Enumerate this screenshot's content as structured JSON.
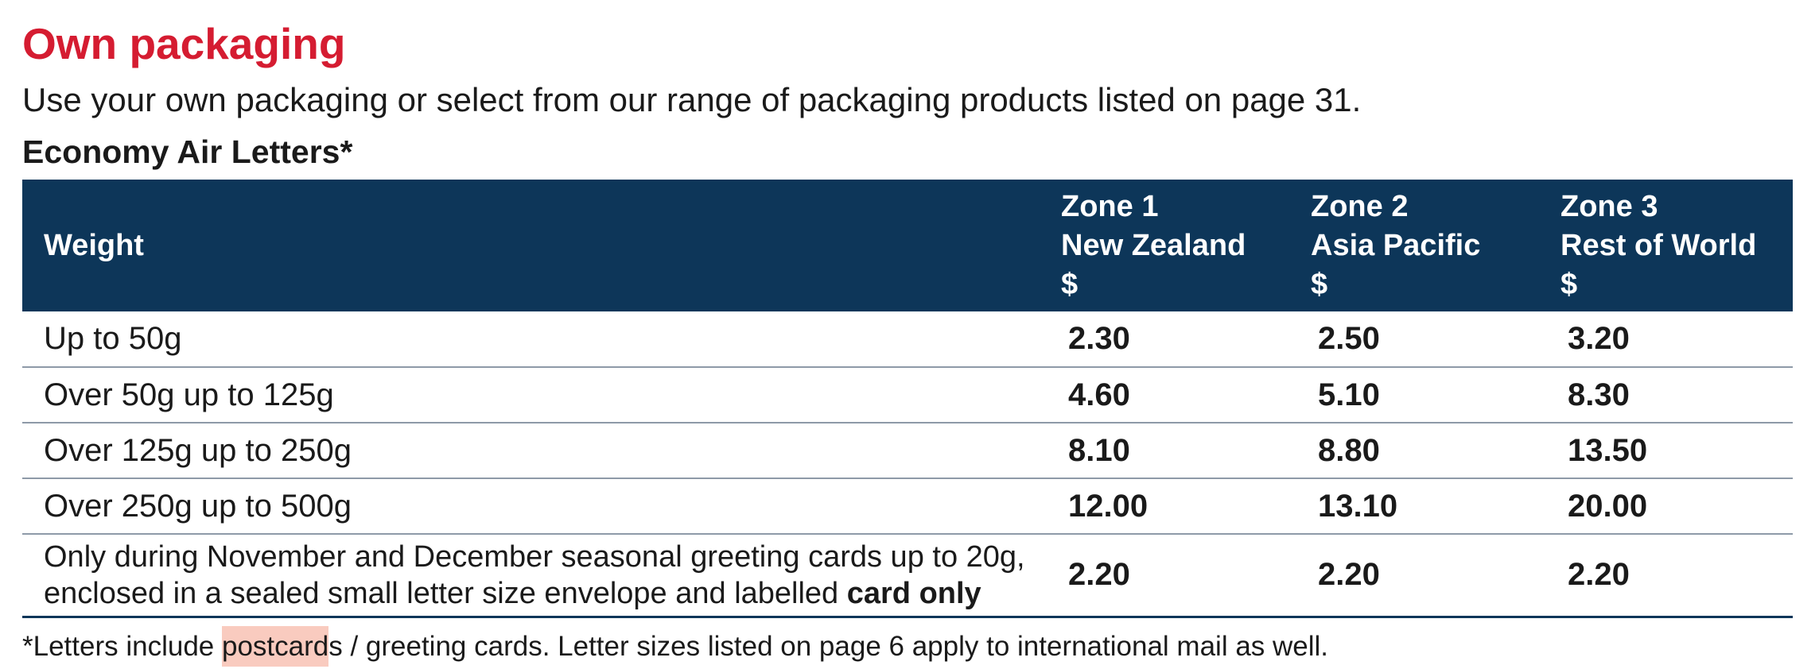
{
  "heading": "Own packaging",
  "intro": "Use your own packaging or select from our range of packaging products listed on page 31.",
  "table_title": "Economy Air Letters*",
  "columns": {
    "weight": "Weight",
    "zone1": {
      "line1": "Zone 1",
      "line2": "New Zealand",
      "line3": "$"
    },
    "zone2": {
      "line1": "Zone 2",
      "line2": "Asia Pacific",
      "line3": "$"
    },
    "zone3": {
      "line1": "Zone 3",
      "line2": "Rest of World",
      "line3": "$"
    }
  },
  "rows": [
    {
      "weight": "Up to 50g",
      "z1": "2.30",
      "z2": "2.50",
      "z3": "3.20"
    },
    {
      "weight": "Over 50g up to 125g",
      "z1": "4.60",
      "z2": "5.10",
      "z3": "8.30"
    },
    {
      "weight": "Over 125g up to 250g",
      "z1": "8.10",
      "z2": "8.80",
      "z3": "13.50"
    },
    {
      "weight": "Over 250g up to 500g",
      "z1": "12.00",
      "z2": "13.10",
      "z3": "20.00"
    }
  ],
  "seasonal": {
    "line1": "Only during November and December seasonal greeting cards up to 20g,",
    "line2_prefix": "enclosed in a sealed small letter size envelope and labelled ",
    "line2_bold": "card only",
    "z1": "2.20",
    "z2": "2.20",
    "z3": "2.20"
  },
  "footnote": {
    "before": "*Letters include ",
    "highlight": "postcard",
    "after": "s / greeting cards.  Letter sizes listed on page 6 apply to international mail as well."
  },
  "colors": {
    "heading": "#d51c31",
    "header_bg": "#0d3659",
    "highlight": "#f9cbbf"
  }
}
